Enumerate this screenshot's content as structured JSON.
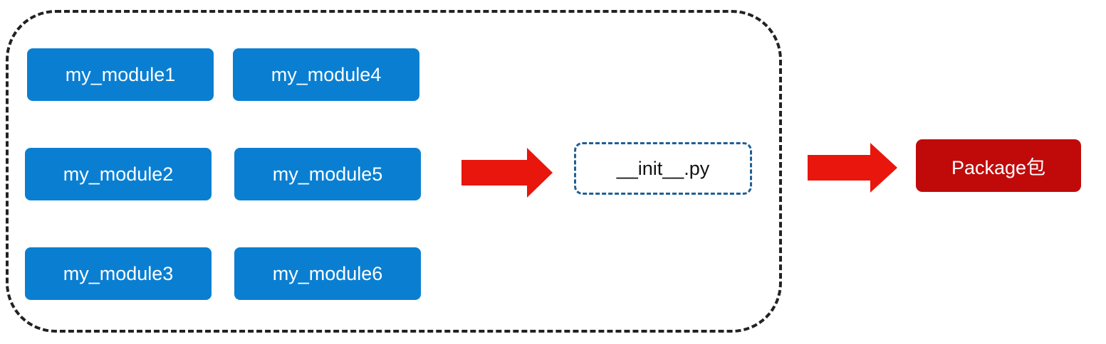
{
  "modules": [
    {
      "label": "my_module1"
    },
    {
      "label": "my_module2"
    },
    {
      "label": "my_module3"
    },
    {
      "label": "my_module4"
    },
    {
      "label": "my_module5"
    },
    {
      "label": "my_module6"
    }
  ],
  "init_file": {
    "label": "__init__.py"
  },
  "package": {
    "label": "Package包"
  },
  "colors": {
    "module_fill": "#0a7fd2",
    "package_fill": "#c00a0a",
    "arrow_fill": "#e8160c",
    "init_border": "#1f5f95",
    "container_border": "#222222"
  },
  "icons": [
    "right-arrow-icon",
    "right-arrow-icon"
  ]
}
